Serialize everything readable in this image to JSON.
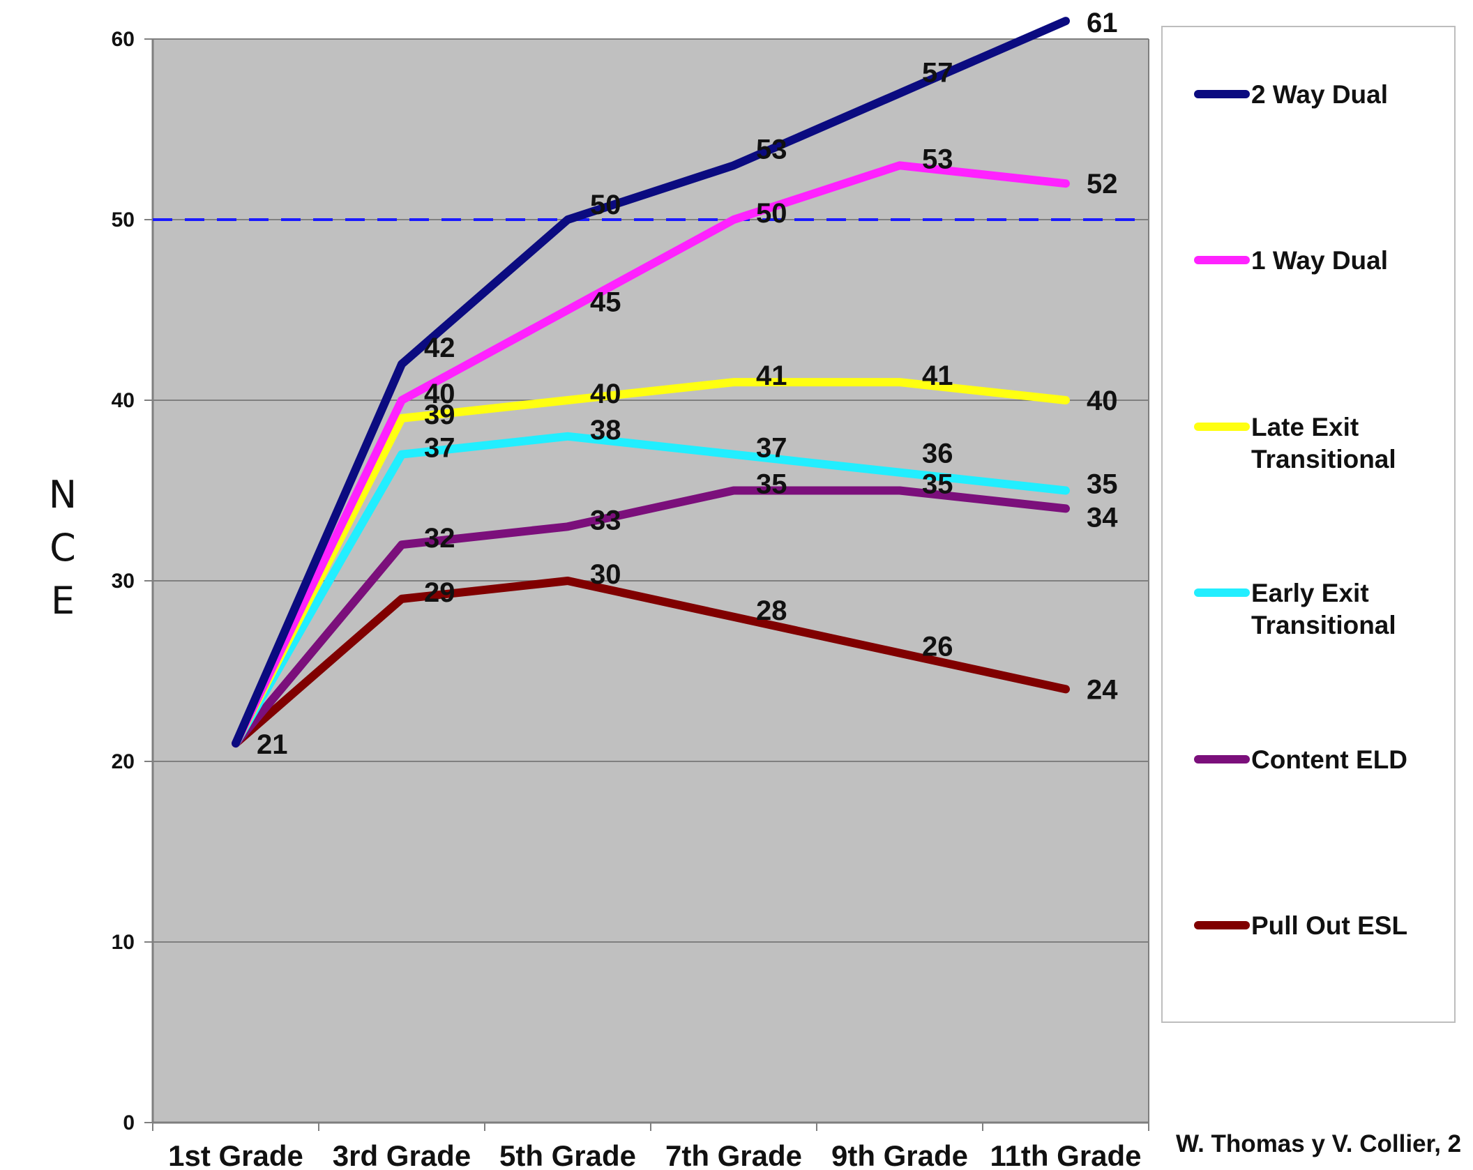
{
  "chart_data": {
    "type": "line",
    "title": "",
    "xlabel": "",
    "ylabel": "NCE",
    "ylim": [
      0,
      60
    ],
    "yticks": [
      0,
      10,
      20,
      30,
      40,
      50,
      60
    ],
    "grid": true,
    "legend": "right",
    "x": [
      "1st Grade",
      "3rd Grade",
      "5th Grade",
      "7th Grade",
      "9th Grade",
      "11th Grade"
    ],
    "reference_line": {
      "value": 50,
      "style": "dashed",
      "color": "#1a1aff"
    },
    "credit": "W. Thomas y V. Collier, 2",
    "series": [
      {
        "name": "2 Way Dual",
        "color": "#0b0b80",
        "values": [
          21,
          42,
          50,
          53,
          57,
          61
        ]
      },
      {
        "name": "1 Way Dual",
        "color": "#ff22ff",
        "values": [
          21,
          40,
          45,
          50,
          53,
          52
        ]
      },
      {
        "name": "Late Exit Transitional",
        "color": "#ffff11",
        "values": [
          21,
          39,
          40,
          41,
          41,
          40
        ]
      },
      {
        "name": "Early Exit Transitional",
        "color": "#22eeff",
        "values": [
          21,
          37,
          38,
          37,
          36,
          35
        ]
      },
      {
        "name": "Content ELD",
        "color": "#7b0f7b",
        "values": [
          21,
          32,
          33,
          35,
          35,
          34
        ]
      },
      {
        "name": "Pull Out ESL",
        "color": "#800000",
        "values": [
          21,
          29,
          30,
          28,
          26,
          24
        ]
      }
    ]
  },
  "legend_lines": [
    [
      "2 Way Dual"
    ],
    [
      "1 Way Dual"
    ],
    [
      "Late Exit",
      "Transitional"
    ],
    [
      "Early Exit",
      "Transitional"
    ],
    [
      "Content ELD"
    ],
    [
      "Pull Out ESL"
    ]
  ]
}
